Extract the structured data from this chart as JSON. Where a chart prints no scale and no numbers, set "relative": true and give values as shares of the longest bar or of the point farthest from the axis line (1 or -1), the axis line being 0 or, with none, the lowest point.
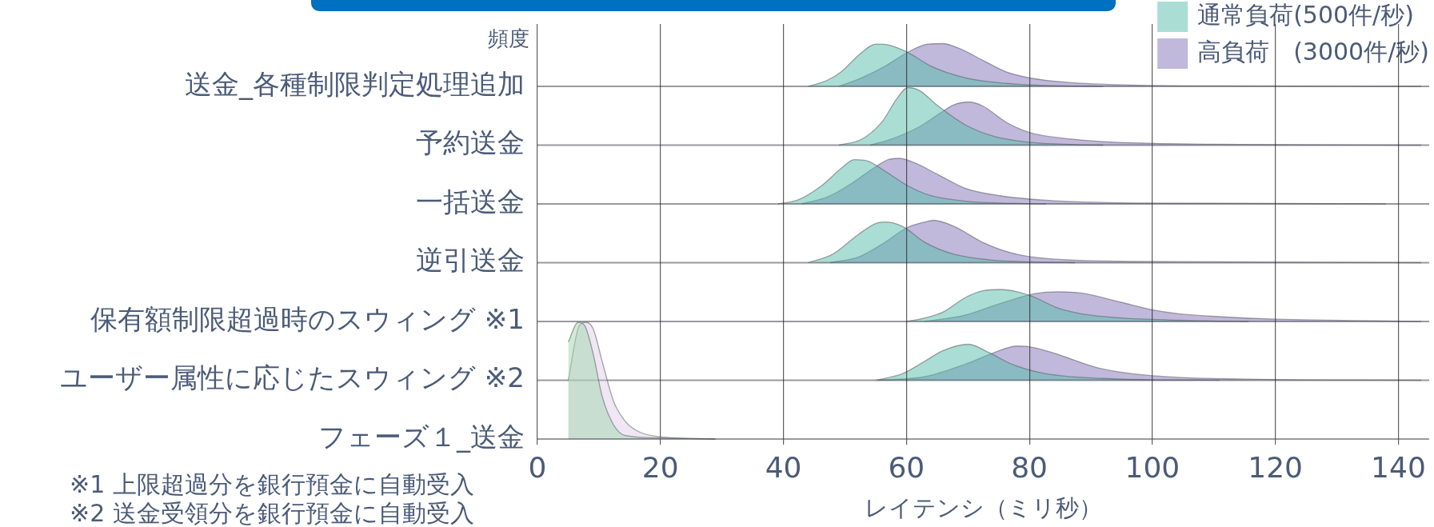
{
  "chart_data": [
    {
      "type": "area",
      "ylabel": "送金_各種制限判定処理追加",
      "relative": true,
      "xlim": [
        0,
        145
      ],
      "tick_labels": false,
      "legend": "top right",
      "annotations": [
        "頻度"
      ],
      "series": [
        {
          "name": "通常負荷(500件/秒)",
          "color": "#56beaa",
          "x": [
            44,
            47.1,
            49.4,
            52.3,
            55.1,
            57,
            60,
            64,
            69.6,
            76.2,
            82.7,
            92
          ],
          "values": [
            0,
            0.14,
            0.34,
            0.74,
            0.99,
            0.97,
            0.81,
            0.47,
            0.2,
            0.07,
            0.02,
            0
          ]
        },
        {
          "name": "高負荷　(3000件/秒)",
          "color": "#5a46a0",
          "x": [
            49,
            52.7,
            56.5,
            60,
            63.5,
            65.9,
            68.7,
            72.4,
            76.2,
            80,
            86.5,
            96.8,
            111,
            143.7
          ],
          "values": [
            0,
            0.2,
            0.47,
            0.78,
            0.99,
            1,
            0.88,
            0.61,
            0.34,
            0.2,
            0.09,
            0.03,
            0.01,
            0
          ]
        }
      ]
    },
    {
      "type": "area",
      "ylabel": "予約送金",
      "relative": true,
      "xlim": [
        0,
        145
      ],
      "tick_labels": false,
      "series": [
        {
          "color": "#56beaa",
          "x": [
            49,
            52.7,
            56,
            58.4,
            60.2,
            62.1,
            64.9,
            69.6,
            74.3,
            80,
            87.4,
            92
          ],
          "values": [
            0,
            0.1,
            0.4,
            0.8,
            1,
            0.95,
            0.7,
            0.35,
            0.15,
            0.05,
            0.01,
            0
          ]
        },
        {
          "color": "#5a46a0",
          "x": [
            54.1,
            57.4,
            62.1,
            65.4,
            67.7,
            70.1,
            72.4,
            76.2,
            80,
            87.4,
            96.8,
            120.3,
            143.7
          ],
          "values": [
            0,
            0.1,
            0.32,
            0.55,
            0.7,
            0.75,
            0.68,
            0.4,
            0.22,
            0.1,
            0.04,
            0.01,
            0
          ]
        }
      ]
    },
    {
      "type": "area",
      "ylabel": "一括送金",
      "relative": true,
      "xlim": [
        0,
        145
      ],
      "tick_labels": false,
      "series": [
        {
          "color": "#56beaa",
          "x": [
            39.1,
            42.4,
            46.2,
            49.4,
            51.5,
            53.7,
            56.5,
            60.2,
            64,
            69.6,
            78,
            82.7
          ],
          "values": [
            0,
            0.09,
            0.4,
            0.78,
            0.97,
            0.94,
            0.72,
            0.4,
            0.18,
            0.06,
            0.01,
            0
          ]
        },
        {
          "color": "#5a46a0",
          "x": [
            42.9,
            47.1,
            51.3,
            54.6,
            57,
            58.8,
            61.2,
            64.9,
            69.6,
            75.2,
            82.7,
            96.8,
            138
          ],
          "values": [
            0,
            0.15,
            0.47,
            0.78,
            0.97,
            1,
            0.91,
            0.66,
            0.34,
            0.18,
            0.08,
            0.02,
            0
          ]
        }
      ]
    },
    {
      "type": "area",
      "ylabel": "逆引送金",
      "relative": true,
      "xlim": [
        0,
        145
      ],
      "tick_labels": false,
      "series": [
        {
          "color": "#56beaa",
          "x": [
            44,
            48,
            52.3,
            55.1,
            56.5,
            59.3,
            63,
            67.7,
            73.4,
            82.7,
            87.4
          ],
          "values": [
            0,
            0.2,
            0.68,
            0.93,
            0.96,
            0.86,
            0.48,
            0.2,
            0.07,
            0.01,
            0
          ]
        },
        {
          "color": "#5a46a0",
          "x": [
            47.6,
            52.3,
            56.5,
            60,
            63,
            64.4,
            67.7,
            72.4,
            77.1,
            82.7,
            96.8,
            143.7
          ],
          "values": [
            0,
            0.14,
            0.48,
            0.82,
            0.96,
            1,
            0.86,
            0.48,
            0.23,
            0.1,
            0.03,
            0
          ]
        }
      ]
    },
    {
      "type": "area",
      "ylabel": "保有額制限超過時のスウィング ※1",
      "relative": true,
      "xlim": [
        0,
        145
      ],
      "tick_labels": false,
      "series": [
        {
          "color": "#56beaa",
          "x": [
            60,
            63,
            65.9,
            69.6,
            72.4,
            75.2,
            78,
            80.9,
            84.6,
            88.4,
            94.9,
            104.3,
            110.9,
            115.6
          ],
          "values": [
            0,
            0.11,
            0.29,
            0.75,
            0.96,
            1,
            0.93,
            0.75,
            0.42,
            0.24,
            0.11,
            0.04,
            0.01,
            0
          ]
        },
        {
          "color": "#5a46a0",
          "x": [
            63,
            69.6,
            75.2,
            80.9,
            84.6,
            88.4,
            94.9,
            99.6,
            104.3,
            110.9,
            120.3,
            143.7
          ],
          "values": [
            0,
            0.2,
            0.56,
            0.87,
            0.93,
            0.89,
            0.6,
            0.38,
            0.24,
            0.15,
            0.07,
            0
          ]
        }
      ]
    },
    {
      "type": "area",
      "ylabel": "ユーザー属性に応じたスウィング ※2",
      "relative": true,
      "xlim": [
        0,
        145
      ],
      "tick_labels": false,
      "series": [
        {
          "color": "#56beaa",
          "x": [
            55.1,
            59.3,
            63,
            65.9,
            70.1,
            73.4,
            77.1,
            82.7,
            92.1,
            101.5,
            110.9
          ],
          "values": [
            0,
            0.18,
            0.53,
            0.82,
            1,
            0.77,
            0.45,
            0.18,
            0.05,
            0.01,
            0
          ]
        },
        {
          "color": "#5a46a0",
          "x": [
            55.5,
            63,
            69.6,
            74.3,
            78,
            80,
            83.7,
            91.2,
            96.8,
            104.3,
            115.6,
            143.7
          ],
          "values": [
            0,
            0.1,
            0.45,
            0.77,
            0.95,
            0.93,
            0.77,
            0.34,
            0.18,
            0.08,
            0.03,
            0
          ]
        }
      ]
    },
    {
      "type": "area",
      "ylabel": "フェーズ１_送金",
      "relative": true,
      "xlim": [
        0,
        145
      ],
      "xticks": [
        0,
        20,
        40,
        60,
        80,
        100,
        120,
        140
      ],
      "tick_labels": "x",
      "grid": "x",
      "xlabel": "レイテンシ（ミリ秒）",
      "annotations": [
        "※1 上限超過分を銀行預金に自動受入",
        "※2 送金受領分を銀行預金に自動受入"
      ],
      "series": [
        {
          "color": "#9fd6ae",
          "x": [
            5,
            6.6,
            7.7,
            9.1,
            10.5,
            12.4,
            14.3,
            19.9,
            29
          ],
          "values": [
            0.83,
            1,
            0.97,
            0.72,
            0.37,
            0.12,
            0.03,
            0.01,
            0
          ]
        },
        {
          "color": "#d9bfe3",
          "x": [
            5,
            6.8,
            7.9,
            9.1,
            10.5,
            12.4,
            14.3,
            16.6,
            19.9,
            28.8
          ],
          "values": [
            0.5,
            0.97,
            1,
            0.94,
            0.67,
            0.32,
            0.15,
            0.06,
            0.02,
            0
          ]
        }
      ]
    }
  ]
}
